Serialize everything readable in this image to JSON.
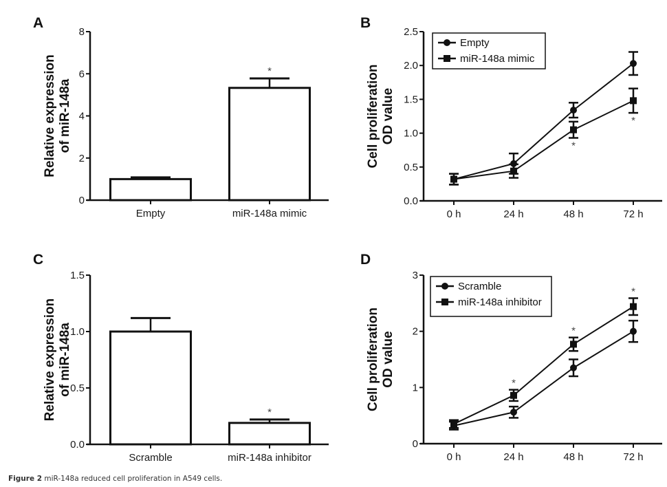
{
  "caption": {
    "label": "Figure 2",
    "text": "miR-148a reduced cell proliferation in A549 cells."
  },
  "chart_data": [
    {
      "panel": "A",
      "type": "bar",
      "title": "",
      "xlabel": "",
      "ylabel": [
        "Relative expression",
        "of miR-148a"
      ],
      "ylim": [
        0,
        8
      ],
      "yticks": [
        0,
        2,
        4,
        6,
        8
      ],
      "ytick_labels": [
        "0",
        "2",
        "4",
        "6",
        "8"
      ],
      "categories": [
        "Empty",
        "miR-148a mimic"
      ],
      "values": [
        1.0,
        5.33
      ],
      "errors": [
        0.08,
        0.45
      ],
      "significance": [
        "",
        "*"
      ]
    },
    {
      "panel": "B",
      "type": "line",
      "title": "",
      "xlabel": "",
      "ylabel": [
        "Cell proliferation",
        "OD value"
      ],
      "ylim": [
        0,
        2.5
      ],
      "yticks": [
        0,
        0.5,
        1.0,
        1.5,
        2.0,
        2.5
      ],
      "ytick_labels": [
        "0.0",
        "0.5",
        "1.0",
        "1.5",
        "2.0",
        "2.5"
      ],
      "categories": [
        "0 h",
        "24 h",
        "48 h",
        "72 h"
      ],
      "legend_position": "top-left",
      "series": [
        {
          "name": "Empty",
          "marker": "circle",
          "values": [
            0.32,
            0.55,
            1.34,
            2.03
          ],
          "errors": [
            0.08,
            0.15,
            0.11,
            0.17
          ],
          "significance": [
            "",
            "",
            "",
            ""
          ]
        },
        {
          "name": "miR-148a mimic",
          "marker": "square",
          "values": [
            0.32,
            0.44,
            1.05,
            1.48
          ],
          "errors": [
            0.08,
            0.1,
            0.12,
            0.18
          ],
          "significance": [
            "",
            "",
            "*",
            "*"
          ]
        }
      ]
    },
    {
      "panel": "C",
      "type": "bar",
      "title": "",
      "xlabel": "",
      "ylabel": [
        "Relative expression",
        "of miR-148a"
      ],
      "ylim": [
        0,
        1.5
      ],
      "yticks": [
        0,
        0.5,
        1.0,
        1.5
      ],
      "ytick_labels": [
        "0.0",
        "0.5",
        "1.0",
        "1.5"
      ],
      "categories": [
        "Scramble",
        "miR-148a inhibitor"
      ],
      "values": [
        1.0,
        0.19
      ],
      "errors": [
        0.12,
        0.03
      ],
      "significance": [
        "",
        "*"
      ]
    },
    {
      "panel": "D",
      "type": "line",
      "title": "",
      "xlabel": "",
      "ylabel": [
        "Cell proliferation",
        "OD value"
      ],
      "ylim": [
        0,
        3
      ],
      "yticks": [
        0,
        1,
        2,
        3
      ],
      "ytick_labels": [
        "0",
        "1",
        "2",
        "3"
      ],
      "categories": [
        "0 h",
        "24 h",
        "48 h",
        "72 h"
      ],
      "legend_position": "top-left",
      "series": [
        {
          "name": "Scramble",
          "marker": "circle",
          "values": [
            0.32,
            0.56,
            1.35,
            2.0
          ],
          "errors": [
            0.07,
            0.1,
            0.15,
            0.19
          ],
          "significance": [
            "",
            "",
            "",
            ""
          ]
        },
        {
          "name": "miR-148a inhibitor",
          "marker": "square",
          "values": [
            0.35,
            0.86,
            1.77,
            2.44
          ],
          "errors": [
            0.07,
            0.1,
            0.12,
            0.15
          ],
          "significance": [
            "",
            "*",
            "*",
            "*"
          ]
        }
      ]
    }
  ]
}
